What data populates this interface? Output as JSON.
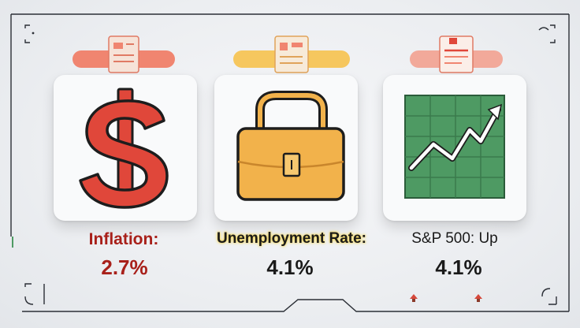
{
  "indicators": [
    {
      "label": "Inflation:",
      "value": "2.7%",
      "icon": "dollar-sign-icon",
      "color": "#a8201a"
    },
    {
      "label": "Unemployment Rate:",
      "value": "4.1%",
      "icon": "briefcase-icon",
      "color": "#1a1a1a"
    },
    {
      "label": "S&P 500: Up",
      "value": "4.1%",
      "icon": "trending-up-chart-icon",
      "color": "#1a1a1a"
    }
  ],
  "colors": {
    "red": "#e0473a",
    "amber": "#f2b24b",
    "green": "#4e9a63",
    "clip_red": "#f08570",
    "clip_yellow": "#f6c75e",
    "clip_pink": "#f2a99a"
  }
}
